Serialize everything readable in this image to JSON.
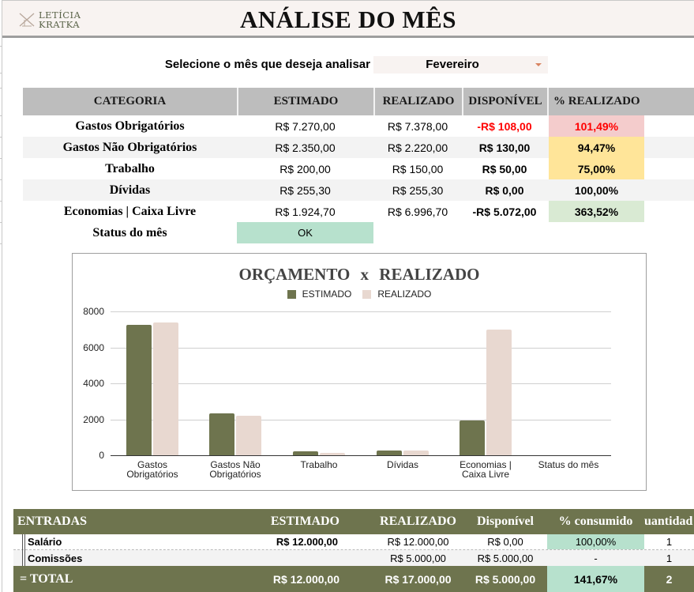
{
  "header": {
    "logo_line1": "LETÍCIA",
    "logo_line2": "KRATKA",
    "title": "ANÁLISE DO MÊS"
  },
  "month_selector": {
    "label": "Selecione o mês que deseja analisar",
    "value": "Fevereiro"
  },
  "category_table": {
    "headers": [
      "CATEGORIA",
      "ESTIMADO",
      "REALIZADO",
      "DISPONÍVEL",
      "% REALIZADO"
    ],
    "rows": [
      {
        "categoria": "Gastos Obrigatórios",
        "estimado": "R$ 7.270,00",
        "realizado": "R$ 7.378,00",
        "disponivel": "-R$ 108,00",
        "pct": "101,49%"
      },
      {
        "categoria": "Gastos Não Obrigatórios",
        "estimado": "R$ 2.350,00",
        "realizado": "R$ 2.220,00",
        "disponivel": "R$ 130,00",
        "pct": "94,47%"
      },
      {
        "categoria": "Trabalho",
        "estimado": "R$ 200,00",
        "realizado": "R$ 150,00",
        "disponivel": "R$ 50,00",
        "pct": "75,00%"
      },
      {
        "categoria": "Dívidas",
        "estimado": "R$ 255,30",
        "realizado": "R$ 255,30",
        "disponivel": "R$ 0,00",
        "pct": "100,00%"
      },
      {
        "categoria": "Economias | Caixa Livre",
        "estimado": "R$ 1.924,70",
        "realizado": "R$ 6.996,70",
        "disponivel": "-R$ 5.072,00",
        "pct": "363,52%"
      }
    ],
    "status_label": "Status do mês",
    "status_value": "OK"
  },
  "colors": {
    "estimado": "#6e744e",
    "realizado": "#e8d8d0",
    "negative": "#ff0000",
    "over_budget": "#f4cccc",
    "warning": "#ffe599",
    "good": "#d9ead3",
    "ok": "#b7e1cd",
    "banner": "#f8f3f1"
  },
  "chart_data": {
    "type": "bar",
    "title": "ORÇAMENTO  x  REALIZADO",
    "categories": [
      "Gastos Obrigatórios",
      "Gastos Não Obrigatórios",
      "Trabalho",
      "Dívidas",
      "Economias | Caixa Livre",
      "Status do mês"
    ],
    "category_labels": [
      [
        "Gastos",
        "Obrigatórios"
      ],
      [
        "Gastos Não",
        "Obrigatórios"
      ],
      [
        "Trabalho"
      ],
      [
        "Dívidas"
      ],
      [
        "Economias |",
        "Caixa Livre"
      ],
      [
        "Status do mês"
      ]
    ],
    "series": [
      {
        "name": "ESTIMADO",
        "values": [
          7270,
          2350,
          200,
          255.3,
          1924.7,
          0
        ]
      },
      {
        "name": "REALIZADO",
        "values": [
          7378,
          2220,
          150,
          255.3,
          6996.7,
          0
        ]
      }
    ],
    "yticks": [
      "8000",
      "6000",
      "4000",
      "2000",
      "0"
    ],
    "ylim": [
      0,
      8000
    ],
    "legend_position": "top",
    "grid": true,
    "xlabel": "",
    "ylabel": ""
  },
  "entradas": {
    "headers": [
      "ENTRADAS",
      "ESTIMADO",
      "REALIZADO",
      "Disponível",
      "% consumido",
      "uantidad"
    ],
    "rows": [
      {
        "nome": "Salário",
        "estimado": "R$ 12.000,00",
        "realizado": "R$ 12.000,00",
        "disponivel": "R$ 0,00",
        "pct": "100,00%",
        "qtd": "1"
      },
      {
        "nome": "Comissões",
        "estimado": "",
        "realizado": "R$ 5.000,00",
        "disponivel": "R$ 5.000,00",
        "pct": "-",
        "qtd": "1"
      }
    ],
    "total": {
      "label": "= TOTAL",
      "estimado": "R$ 12.000,00",
      "realizado": "R$ 17.000,00",
      "disponivel": "R$ 5.000,00",
      "pct": "141,67%",
      "qtd": "2"
    }
  }
}
